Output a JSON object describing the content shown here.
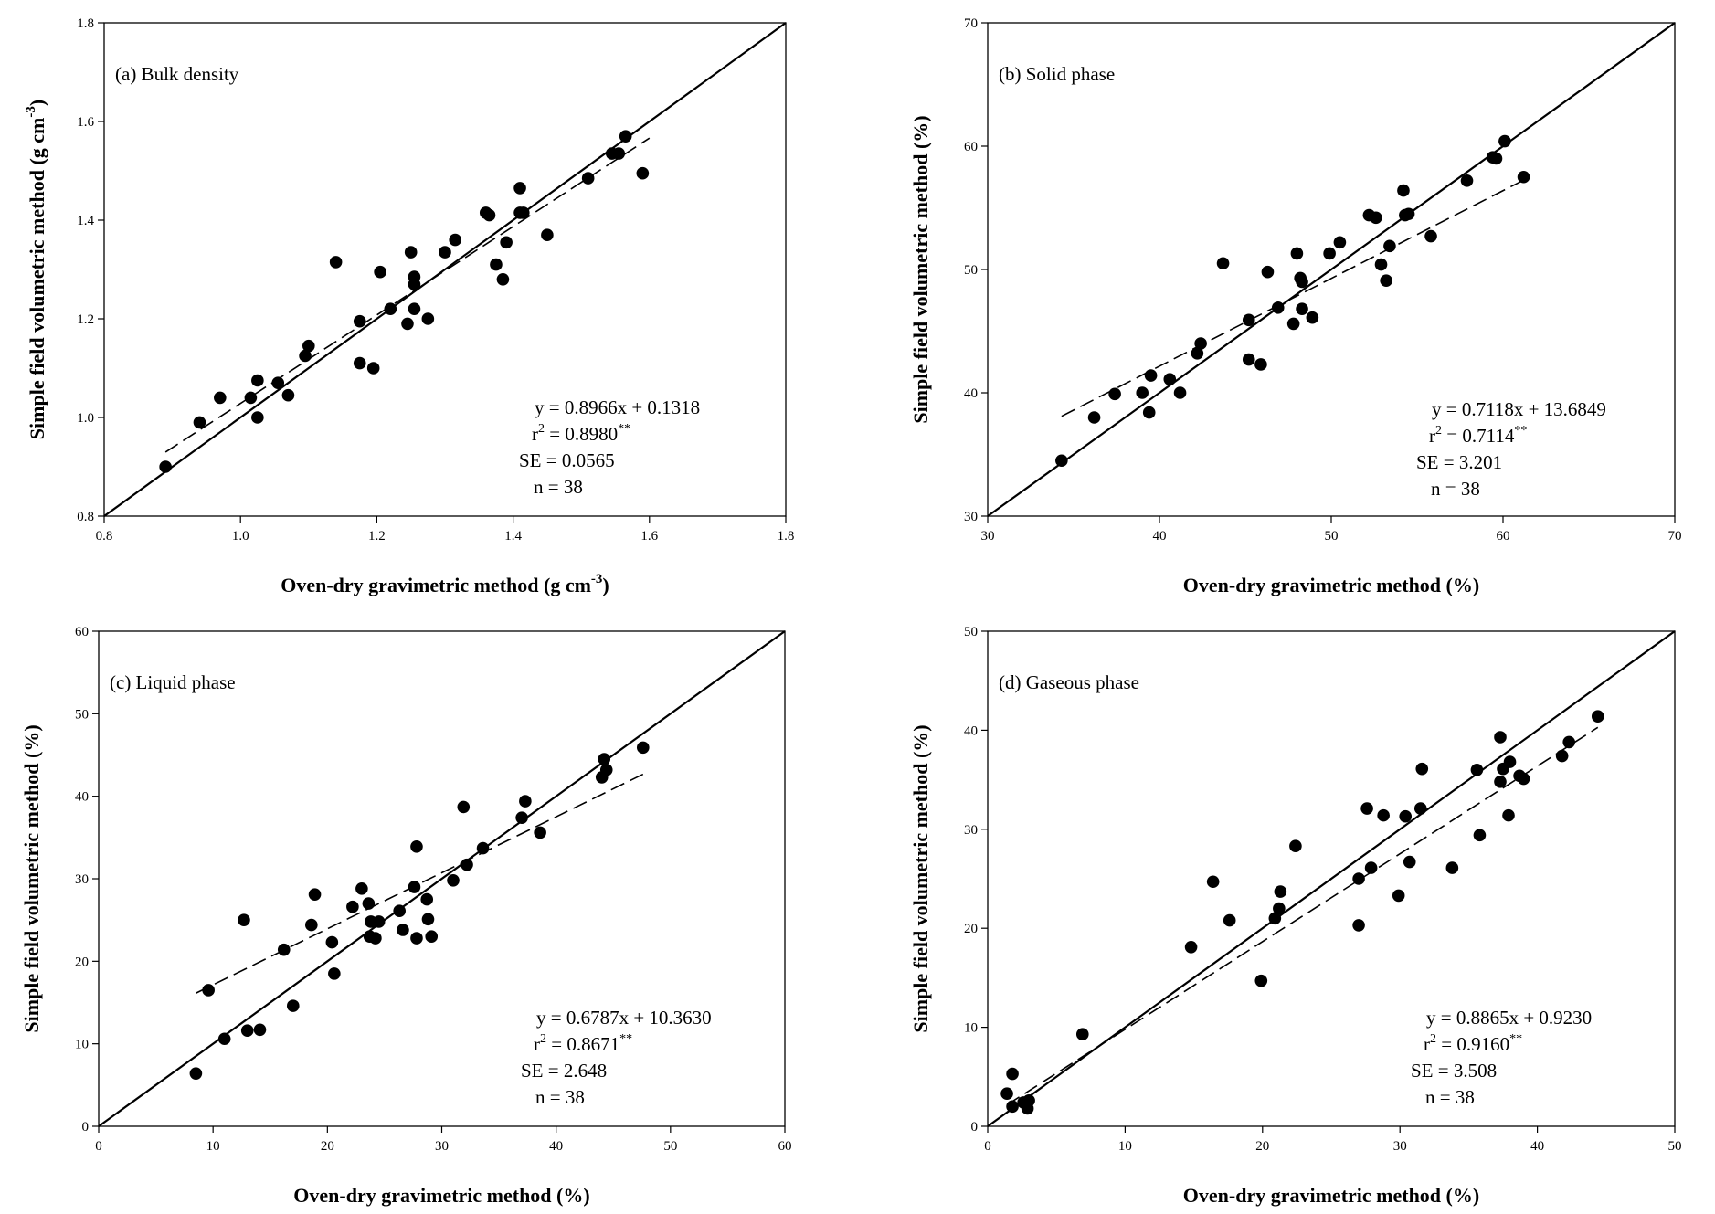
{
  "figure": {
    "chart_data": [
      {
        "type": "scatter",
        "title": "(a) Bulk density",
        "xlabel": "Oven-dry gravimetric method (g cm",
        "xlabel_sup": "-3",
        "xlabel_tail": ")",
        "ylabel": "Simple field volumetric method (g cm",
        "ylabel_sup": "-3",
        "ylabel_tail": ")",
        "xlim": [
          0.8,
          1.8
        ],
        "ylim": [
          0.8,
          1.8
        ],
        "xticks": [
          0.8,
          1.0,
          1.2,
          1.4,
          1.6,
          1.8
        ],
        "yticks": [
          0.8,
          1.0,
          1.2,
          1.4,
          1.6,
          1.8
        ],
        "tick_decimals": 1,
        "x": [
          0.89,
          0.94,
          0.97,
          1.015,
          1.025,
          1.025,
          1.055,
          1.07,
          1.095,
          1.1,
          1.14,
          1.175,
          1.175,
          1.195,
          1.205,
          1.22,
          1.245,
          1.25,
          1.255,
          1.255,
          1.255,
          1.275,
          1.3,
          1.315,
          1.36,
          1.365,
          1.375,
          1.385,
          1.39,
          1.41,
          1.41,
          1.415,
          1.45,
          1.51,
          1.545,
          1.555,
          1.565,
          1.59
        ],
        "y": [
          0.9,
          0.99,
          1.04,
          1.04,
          1.075,
          1.0,
          1.07,
          1.045,
          1.125,
          1.145,
          1.315,
          1.195,
          1.11,
          1.1,
          1.295,
          1.22,
          1.19,
          1.335,
          1.285,
          1.22,
          1.27,
          1.2,
          1.335,
          1.36,
          1.415,
          1.41,
          1.31,
          1.28,
          1.355,
          1.465,
          1.415,
          1.415,
          1.37,
          1.485,
          1.535,
          1.535,
          1.57,
          1.495
        ],
        "fit": {
          "slope": 0.8966,
          "intercept": 0.1318,
          "x_from": 0.89,
          "x_to": 1.6
        },
        "equation": "y = 0.8966x + 0.1318",
        "r2_prefix": "r",
        "r2_value": " = 0.8980",
        "r2_sig": "**",
        "se": "SE = 0.0565",
        "n": "n = 38"
      },
      {
        "type": "scatter",
        "title": "(b) Solid phase",
        "xlabel": "Oven-dry gravimetric method (%)",
        "ylabel": "Simple field volumetric method (%)",
        "xlim": [
          30,
          70
        ],
        "ylim": [
          30,
          70
        ],
        "xticks": [
          30,
          40,
          50,
          60,
          70
        ],
        "yticks": [
          30,
          40,
          50,
          60,
          70
        ],
        "tick_decimals": 0,
        "x": [
          34.3,
          36.2,
          37.4,
          39.0,
          39.4,
          39.5,
          40.6,
          41.2,
          42.2,
          42.4,
          43.7,
          45.2,
          45.2,
          45.9,
          46.3,
          46.9,
          47.8,
          48.0,
          48.2,
          48.3,
          48.3,
          48.9,
          49.9,
          50.5,
          52.2,
          52.6,
          52.9,
          53.2,
          53.4,
          54.2,
          54.3,
          54.5,
          55.8,
          57.9,
          59.4,
          59.6,
          60.1,
          61.2
        ],
        "y": [
          34.5,
          38.0,
          39.9,
          40.0,
          38.4,
          41.4,
          41.1,
          40.0,
          43.2,
          44.0,
          50.5,
          45.9,
          42.7,
          42.3,
          49.8,
          46.9,
          45.6,
          51.3,
          49.3,
          46.8,
          49.0,
          46.1,
          51.3,
          52.2,
          54.4,
          54.2,
          50.4,
          49.1,
          51.9,
          56.4,
          54.4,
          54.5,
          52.7,
          57.2,
          59.1,
          59.0,
          60.4,
          57.5
        ],
        "fit": {
          "slope": 0.7118,
          "intercept": 13.6849,
          "x_from": 34.3,
          "x_to": 61.2
        },
        "equation": "y = 0.7118x + 13.6849",
        "r2_prefix": "r",
        "r2_value": " = 0.7114",
        "r2_sig": "**",
        "se": "SE = 3.201",
        "n": "n = 38"
      },
      {
        "type": "scatter",
        "title": "(c) Liquid phase",
        "xlabel": "Oven-dry gravimetric method (%)",
        "ylabel": "Simple field volumetric method (%)",
        "xlim": [
          0,
          60
        ],
        "ylim": [
          0,
          60
        ],
        "xticks": [
          0,
          10,
          20,
          30,
          40,
          50,
          60
        ],
        "yticks": [
          0,
          10,
          20,
          30,
          40,
          50,
          60
        ],
        "tick_decimals": 0,
        "x": [
          8.5,
          9.6,
          11.0,
          13.0,
          12.7,
          14.1,
          16.2,
          17.0,
          18.6,
          18.9,
          20.4,
          20.6,
          22.2,
          23.0,
          23.6,
          23.8,
          23.7,
          24.2,
          24.5,
          26.3,
          26.6,
          27.6,
          27.8,
          27.8,
          28.7,
          28.8,
          29.1,
          31.0,
          31.9,
          32.2,
          33.6,
          37.0,
          37.3,
          38.6,
          44.0,
          44.2,
          44.4,
          47.6
        ],
        "y": [
          6.4,
          16.5,
          10.6,
          11.6,
          25.0,
          11.7,
          21.4,
          14.6,
          24.4,
          28.1,
          22.3,
          18.5,
          26.6,
          28.8,
          27.0,
          24.8,
          23.0,
          22.8,
          24.8,
          26.1,
          23.8,
          29.0,
          22.8,
          33.9,
          27.5,
          25.1,
          23.0,
          29.8,
          38.7,
          31.7,
          33.7,
          37.4,
          39.4,
          35.6,
          42.3,
          44.5,
          43.2,
          45.9
        ],
        "fit": {
          "slope": 0.6787,
          "intercept": 10.363,
          "x_from": 8.5,
          "x_to": 47.6
        },
        "equation": "y = 0.6787x + 10.3630",
        "r2_prefix": "r",
        "r2_value": " = 0.8671",
        "r2_sig": "**",
        "se": "SE = 2.648",
        "n": "n = 38"
      },
      {
        "type": "scatter",
        "title": "(d) Gaseous phase",
        "xlabel": "Oven-dry gravimetric method (%)",
        "ylabel": "Simple field volumetric method (%)",
        "xlim": [
          0,
          50
        ],
        "ylim": [
          0,
          50
        ],
        "xticks": [
          0,
          10,
          20,
          30,
          40,
          50
        ],
        "yticks": [
          0,
          10,
          20,
          30,
          40,
          50
        ],
        "tick_decimals": 0,
        "x": [
          1.4,
          1.8,
          1.8,
          2.6,
          2.9,
          3.0,
          6.9,
          14.8,
          16.4,
          17.6,
          19.9,
          20.9,
          21.2,
          21.3,
          22.4,
          27.0,
          27.0,
          27.6,
          27.9,
          28.8,
          29.9,
          30.4,
          30.7,
          31.5,
          31.6,
          33.8,
          35.6,
          35.8,
          37.3,
          37.3,
          37.5,
          37.9,
          38.0,
          38.7,
          39.0,
          41.8,
          42.3,
          44.4
        ],
        "y": [
          3.3,
          5.3,
          2.0,
          2.4,
          1.8,
          2.6,
          9.3,
          18.1,
          24.7,
          20.8,
          14.7,
          21.0,
          22.0,
          23.7,
          28.3,
          25.0,
          20.3,
          32.1,
          26.1,
          31.4,
          23.3,
          31.3,
          26.7,
          32.1,
          36.1,
          26.1,
          36.0,
          29.4,
          39.3,
          34.8,
          36.1,
          31.4,
          36.8,
          35.4,
          35.1,
          37.4,
          38.8,
          41.4
        ],
        "fit": {
          "slope": 0.8865,
          "intercept": 0.923,
          "x_from": 1.4,
          "x_to": 44.4
        },
        "equation": "y = 0.8865x + 0.9230",
        "r2_prefix": "r",
        "r2_value": " = 0.9160",
        "r2_sig": "**",
        "se": "SE = 3.508",
        "n": "n = 38"
      }
    ]
  }
}
